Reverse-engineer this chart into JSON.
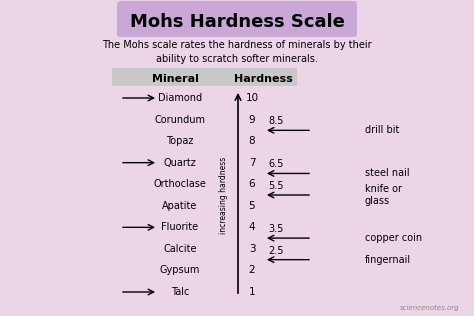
{
  "title": "Mohs Hardness Scale",
  "subtitle": "The Mohs scale rates the hardness of minerals by their\nability to scratch softer minerals.",
  "bg_color": "#edd5e8",
  "title_bg": "#c9a8d8",
  "col_mineral": "Mineral",
  "col_hardness": "Hardness",
  "minerals": [
    "Diamond",
    "Corundum",
    "Topaz",
    "Quartz",
    "Orthoclase",
    "Apatite",
    "Fluorite",
    "Calcite",
    "Gypsum",
    "Talc"
  ],
  "hardness": [
    10,
    9,
    8,
    7,
    6,
    5,
    4,
    3,
    2,
    1
  ],
  "arrow_minerals": [
    "Diamond",
    "Quartz",
    "Fluorite",
    "Talc"
  ],
  "common_items": [
    {
      "hardness": 8.5,
      "label": "drill bit"
    },
    {
      "hardness": 6.5,
      "label": "steel nail"
    },
    {
      "hardness": 5.5,
      "label": "knife or\nglass"
    },
    {
      "hardness": 3.5,
      "label": "copper coin"
    },
    {
      "hardness": 2.5,
      "label": "fingernail"
    }
  ],
  "axis_label": "increasing hardness",
  "watermark": "sciencenotes.org",
  "header_bg": "#c8c8c8"
}
